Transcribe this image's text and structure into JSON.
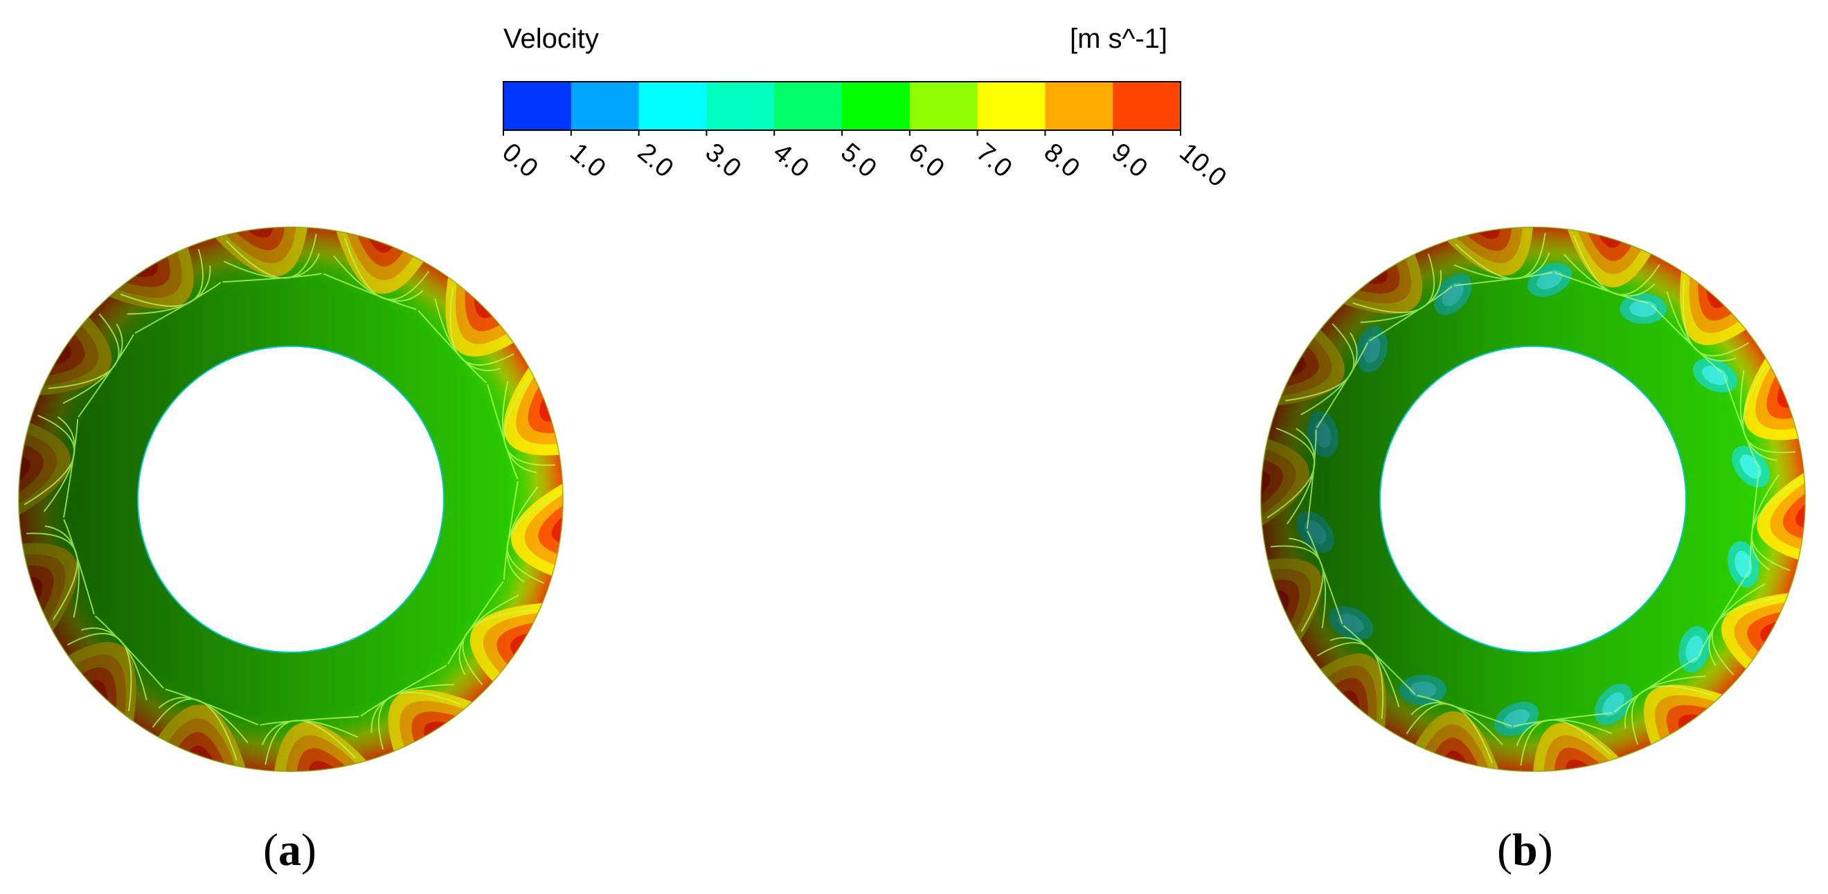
{
  "legend": {
    "title": "Velocity",
    "unit": "[m s^-1]",
    "colors": [
      "#0037ff",
      "#00a6ff",
      "#00ffff",
      "#00ffbf",
      "#00ff6a",
      "#00ff00",
      "#8fff00",
      "#ffff00",
      "#ffaa00",
      "#ff4500"
    ],
    "tick_labels": [
      "0.0",
      "1.0",
      "2.0",
      "3.0",
      "4.0",
      "5.0",
      "6.0",
      "7.0",
      "8.0",
      "9.0",
      "10.0"
    ]
  },
  "panels": [
    {
      "id": "a",
      "label": "a"
    },
    {
      "id": "b",
      "label": "b"
    }
  ]
}
